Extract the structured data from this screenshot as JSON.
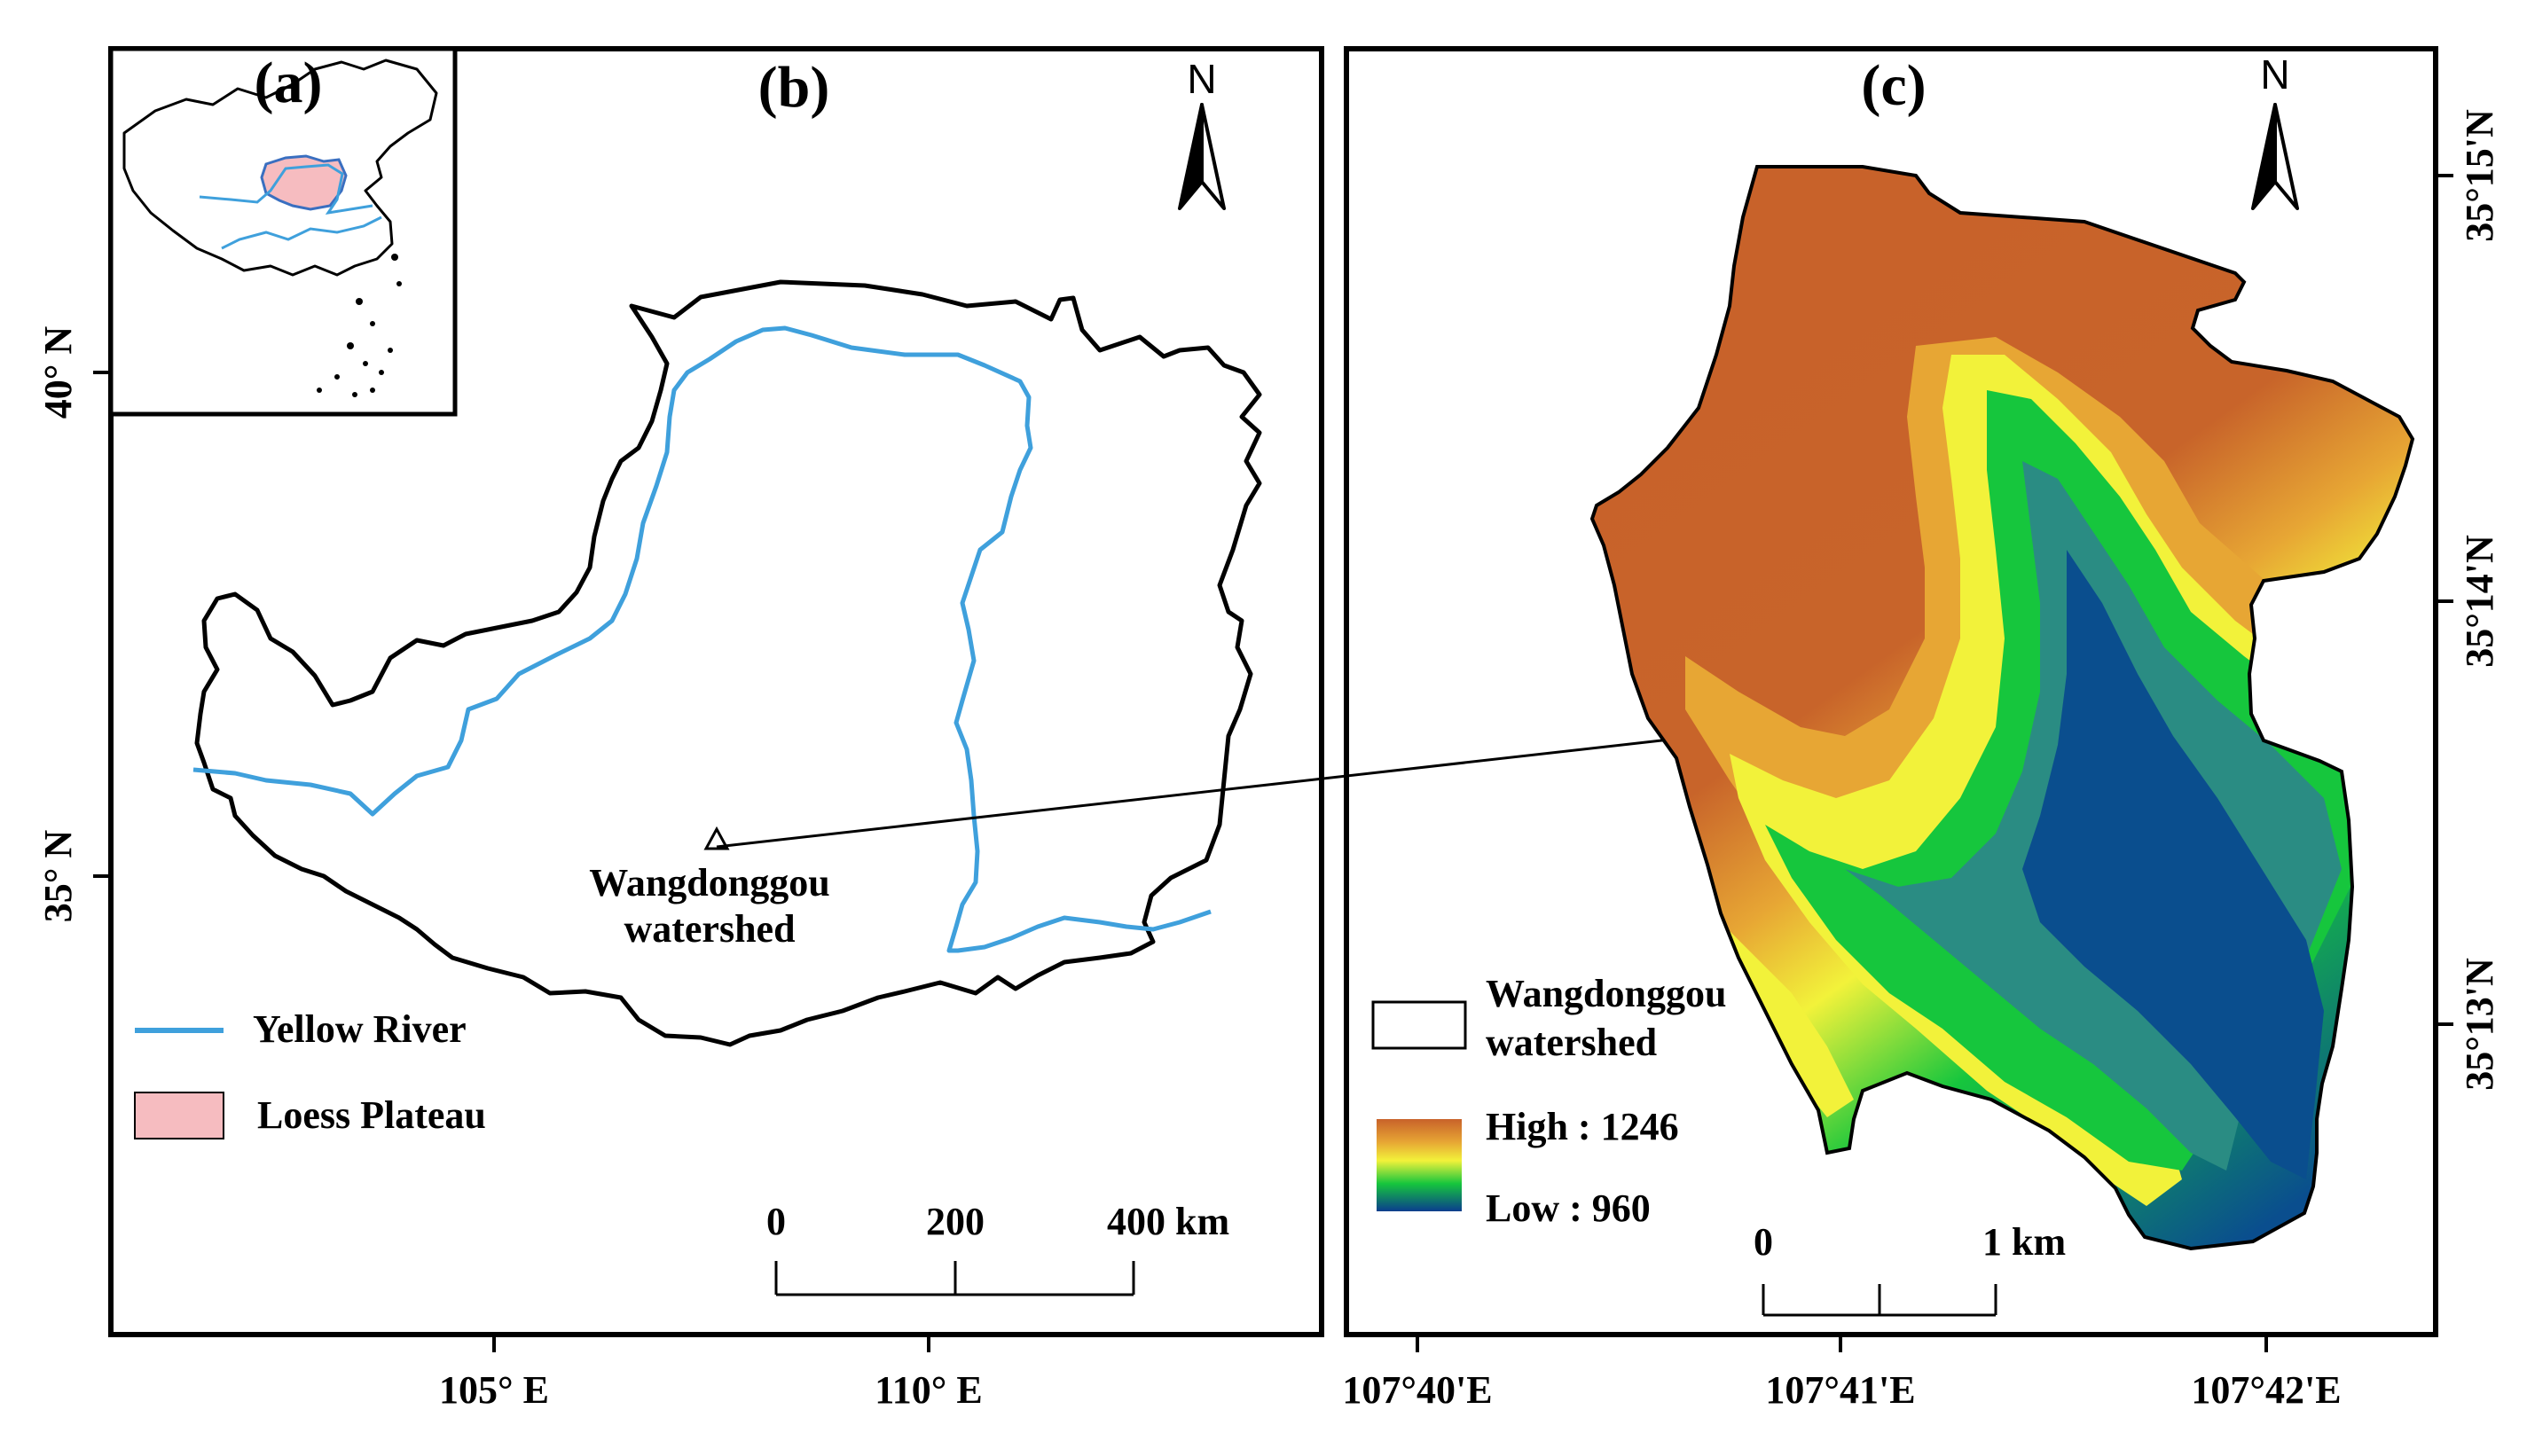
{
  "panels": {
    "a": {
      "label": "(a)"
    },
    "b": {
      "label": "(b)",
      "north": "N"
    },
    "c": {
      "label": "(c)",
      "north": "N"
    }
  },
  "panel_b": {
    "lon_ticks": [
      "105° E",
      "110° E"
    ],
    "lat_ticks": [
      "40° N",
      "35° N"
    ],
    "site_label_line1": "Wangdonggou",
    "site_label_line2": "watershed",
    "legend": {
      "yellow_river": "Yellow River",
      "loess_plateau": "Loess Plateau"
    },
    "scale_ticks": [
      "0",
      "200",
      "400 km"
    ]
  },
  "panel_c": {
    "lon_ticks": [
      "107°40'E",
      "107°41'E",
      "107°42'E"
    ],
    "lat_ticks": [
      "35°15'N",
      "35°14'N",
      "35°13'N"
    ],
    "legend": {
      "watershed_line1": "Wangdonggou",
      "watershed_line2": "watershed",
      "high": "High : 1246",
      "low": "Low : 960"
    },
    "elevation_range": {
      "high": 1246,
      "low": 960
    },
    "scale_ticks": [
      "0",
      "1 km"
    ]
  },
  "colors": {
    "river": "#3fa0dc",
    "loess_fill": "#f6bcc0",
    "dem_high": "#c8622a",
    "dem_mid_high": "#e7a634",
    "dem_mid": "#f2f23a",
    "dem_mid_low": "#16c63d",
    "dem_low": "#0a3d8e"
  }
}
